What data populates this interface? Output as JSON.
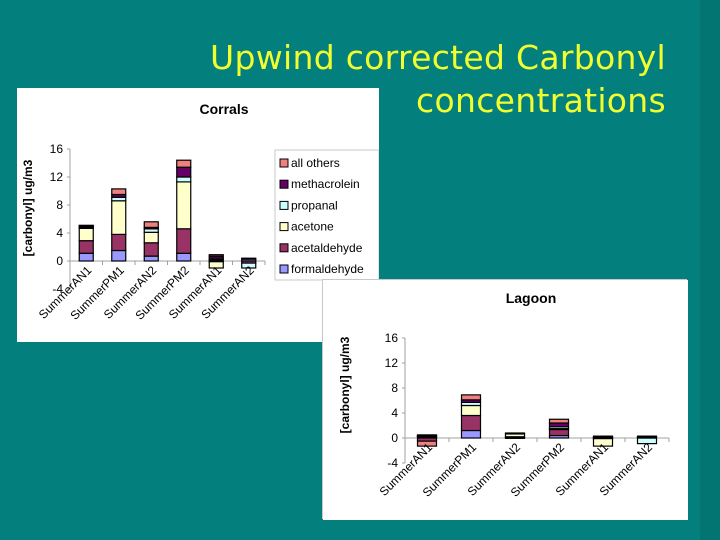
{
  "slide": {
    "title_line1": "Upwind corrected Carbonyl",
    "title_line2": "concentrations",
    "background_color": "#037f7d",
    "title_color": "#f2ff2e"
  },
  "legend": [
    {
      "label": "all others",
      "color": "#f08080"
    },
    {
      "label": "methacrolein",
      "color": "#660066"
    },
    {
      "label": "propanal",
      "color": "#ccffff"
    },
    {
      "label": "acetone",
      "color": "#ffffcc"
    },
    {
      "label": "acetaldehyde",
      "color": "#993366"
    },
    {
      "label": "formaldehyde",
      "color": "#9999ff"
    }
  ],
  "chart_data": [
    {
      "type": "bar",
      "stacked": true,
      "title": "Corrals",
      "xlabel": "",
      "ylabel": "[carbonyl] ug/m3",
      "ylim": [
        -4,
        16
      ],
      "yticks": [
        -4,
        0,
        4,
        8,
        12,
        16
      ],
      "categories": [
        "SummerAN1",
        "SummerPM1",
        "SummerAN2",
        "SummerPM2",
        "SummerAN1",
        "SummerAN2"
      ],
      "legend_position": "right",
      "grid": false,
      "series": [
        {
          "name": "formaldehyde",
          "values": [
            1.1,
            1.5,
            0.7,
            1.1,
            -0.1,
            0.3
          ]
        },
        {
          "name": "acetaldehyde",
          "values": [
            1.8,
            2.3,
            1.9,
            3.5,
            0.2,
            -0.3
          ]
        },
        {
          "name": "acetone",
          "values": [
            1.8,
            4.8,
            1.5,
            6.7,
            -0.9,
            0.1
          ]
        },
        {
          "name": "propanal",
          "values": [
            0.1,
            0.5,
            0.5,
            0.7,
            0.2,
            -0.7
          ]
        },
        {
          "name": "methacrolein",
          "values": [
            0.2,
            0.4,
            0.2,
            1.4,
            0.3,
            0.0
          ]
        },
        {
          "name": "all others",
          "values": [
            0.1,
            0.8,
            0.8,
            1.0,
            0.2,
            0.0
          ]
        }
      ]
    },
    {
      "type": "bar",
      "stacked": true,
      "title": "Lagoon",
      "xlabel": "",
      "ylabel": "[carbonyl] ug/m3",
      "ylim": [
        -4,
        16
      ],
      "yticks": [
        -4,
        0,
        4,
        8,
        12,
        16
      ],
      "categories": [
        "SummerAN1",
        "SummerPM1",
        "SummerAN2",
        "SummerPM2",
        "SummerAN1",
        "SummerAN2"
      ],
      "grid": false,
      "series": [
        {
          "name": "formaldehyde",
          "values": [
            0.2,
            1.2,
            0.1,
            0.4,
            0.1,
            0.0
          ]
        },
        {
          "name": "acetaldehyde",
          "values": [
            -0.5,
            2.4,
            0.1,
            1.0,
            -0.1,
            0.0
          ]
        },
        {
          "name": "acetone",
          "values": [
            0.1,
            1.6,
            0.5,
            0.1,
            -1.2,
            0.0
          ]
        },
        {
          "name": "propanal",
          "values": [
            0.1,
            0.5,
            0.0,
            0.3,
            0.1,
            -0.9
          ]
        },
        {
          "name": "methacrolein",
          "values": [
            0.1,
            0.4,
            0.0,
            0.6,
            0.1,
            0.2
          ]
        },
        {
          "name": "all others",
          "values": [
            -0.8,
            0.8,
            0.1,
            0.6,
            0.0,
            0.1
          ]
        }
      ]
    }
  ]
}
